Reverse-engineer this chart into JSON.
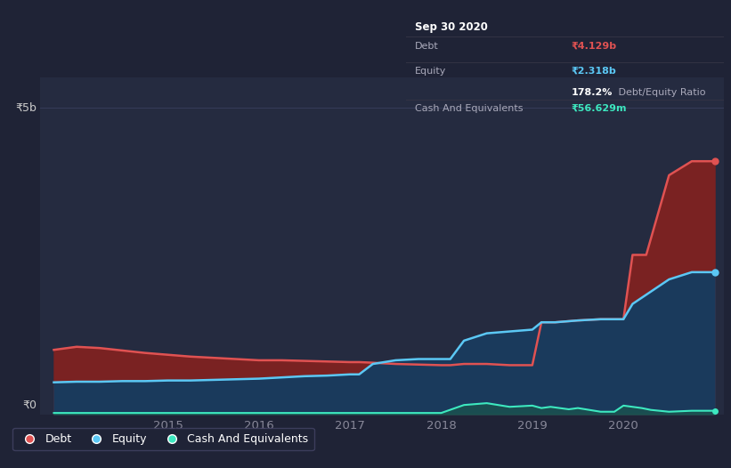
{
  "background_color": "#1f2336",
  "plot_bg_color": "#252b40",
  "grid_color": "#3a4060",
  "title_box": {
    "date": "Sep 30 2020",
    "debt_label": "Debt",
    "debt_value": "₹4.129b",
    "equity_label": "Equity",
    "equity_value": "₹2.318b",
    "ratio_bold": "178.2%",
    "ratio_rest": " Debt/Equity Ratio",
    "cash_label": "Cash And Equivalents",
    "cash_value": "₹56.629m"
  },
  "ylabel_5b": "₹5b",
  "ylabel_0": "₹0",
  "debt_color": "#e05252",
  "equity_color": "#5bc8f5",
  "cash_color": "#3de8c0",
  "debt_fill_color": "#7a2222",
  "equity_fill_color": "#1a3a5c",
  "cash_fill_color": "#1a5a4a",
  "debt_data_x": [
    2013.75,
    2014.0,
    2014.25,
    2014.5,
    2014.75,
    2015.0,
    2015.25,
    2015.5,
    2015.75,
    2016.0,
    2016.25,
    2016.5,
    2016.75,
    2017.0,
    2017.1,
    2017.25,
    2017.5,
    2017.75,
    2018.0,
    2018.1,
    2018.25,
    2018.5,
    2018.75,
    2019.0,
    2019.1,
    2019.25,
    2019.5,
    2019.75,
    2020.0,
    2020.1,
    2020.25,
    2020.5,
    2020.75,
    2021.0
  ],
  "debt_data_y": [
    1.05,
    1.1,
    1.08,
    1.04,
    1.0,
    0.97,
    0.94,
    0.92,
    0.9,
    0.88,
    0.88,
    0.87,
    0.86,
    0.85,
    0.85,
    0.84,
    0.82,
    0.81,
    0.8,
    0.8,
    0.82,
    0.82,
    0.8,
    0.8,
    1.5,
    1.5,
    1.53,
    1.55,
    1.55,
    2.6,
    2.6,
    3.9,
    4.129,
    4.129
  ],
  "equity_data_x": [
    2013.75,
    2014.0,
    2014.25,
    2014.5,
    2014.75,
    2015.0,
    2015.25,
    2015.5,
    2015.75,
    2016.0,
    2016.25,
    2016.5,
    2016.75,
    2017.0,
    2017.1,
    2017.25,
    2017.5,
    2017.75,
    2018.0,
    2018.1,
    2018.25,
    2018.5,
    2018.75,
    2019.0,
    2019.1,
    2019.25,
    2019.5,
    2019.75,
    2020.0,
    2020.1,
    2020.25,
    2020.5,
    2020.75,
    2021.0
  ],
  "equity_data_y": [
    0.52,
    0.53,
    0.53,
    0.54,
    0.54,
    0.55,
    0.55,
    0.56,
    0.57,
    0.58,
    0.6,
    0.62,
    0.63,
    0.65,
    0.65,
    0.82,
    0.88,
    0.9,
    0.9,
    0.9,
    1.2,
    1.32,
    1.35,
    1.38,
    1.5,
    1.5,
    1.53,
    1.55,
    1.55,
    1.8,
    1.95,
    2.2,
    2.318,
    2.318
  ],
  "cash_data_x": [
    2013.75,
    2014.0,
    2014.5,
    2015.0,
    2015.5,
    2016.0,
    2016.5,
    2017.0,
    2017.5,
    2017.9,
    2018.0,
    2018.25,
    2018.5,
    2018.75,
    2019.0,
    2019.1,
    2019.2,
    2019.3,
    2019.4,
    2019.5,
    2019.75,
    2019.9,
    2020.0,
    2020.1,
    2020.2,
    2020.3,
    2020.5,
    2020.75,
    2021.0
  ],
  "cash_data_y": [
    0.02,
    0.02,
    0.02,
    0.02,
    0.02,
    0.02,
    0.02,
    0.02,
    0.02,
    0.02,
    0.02,
    0.15,
    0.18,
    0.12,
    0.14,
    0.1,
    0.12,
    0.1,
    0.08,
    0.1,
    0.04,
    0.04,
    0.14,
    0.12,
    0.1,
    0.07,
    0.04,
    0.056,
    0.056
  ],
  "ylim": [
    0,
    5.5
  ],
  "xlim": [
    2013.6,
    2021.1
  ],
  "xtick_positions": [
    2015,
    2016,
    2017,
    2018,
    2019,
    2020
  ],
  "legend_items": [
    "Debt",
    "Equity",
    "Cash And Equivalents"
  ]
}
